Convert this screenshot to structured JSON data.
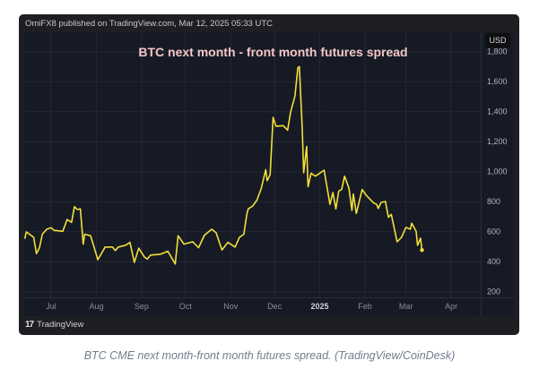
{
  "header": {
    "published": "OmiFX8 published on TradingView.com, Mar 12, 2025 05:33 UTC"
  },
  "currency_badge": "USD",
  "footer": {
    "logo_text": "TradingView",
    "logo_mark": "17"
  },
  "caption": "BTC CME next month-front month futures spread. (TradingView/CoinDesk)",
  "colors": {
    "line": "#f2df3a",
    "pane": "#161a25",
    "grid": "#232836",
    "axis_text": "#b2b5be"
  },
  "chart_data": {
    "type": "line",
    "title": "BTC next month - front month futures spread",
    "xlabel": "",
    "ylabel": "USD",
    "x_unit": "days since 2024-07-01",
    "xlim": [
      -18,
      290
    ],
    "ylim": [
      200,
      1800
    ],
    "grid": true,
    "y_ticks": [
      {
        "value": 200,
        "label": "200"
      },
      {
        "value": 400,
        "label": "400"
      },
      {
        "value": 600,
        "label": "600"
      },
      {
        "value": 800,
        "label": "800"
      },
      {
        "value": 1000,
        "label": "1,000"
      },
      {
        "value": 1200,
        "label": "1,200"
      },
      {
        "value": 1400,
        "label": "1,400"
      },
      {
        "value": 1600,
        "label": "1,600"
      },
      {
        "value": 1800,
        "label": "1,800"
      }
    ],
    "x_ticks": [
      {
        "value": 0,
        "label": "Jul",
        "bold": false
      },
      {
        "value": 31,
        "label": "Aug",
        "bold": false
      },
      {
        "value": 62,
        "label": "Sep",
        "bold": false
      },
      {
        "value": 92,
        "label": "Oct",
        "bold": false
      },
      {
        "value": 123,
        "label": "Nov",
        "bold": false
      },
      {
        "value": 153,
        "label": "Dec",
        "bold": false
      },
      {
        "value": 184,
        "label": "2025",
        "bold": true
      },
      {
        "value": 215,
        "label": "Feb",
        "bold": false
      },
      {
        "value": 243,
        "label": "Mar",
        "bold": false
      },
      {
        "value": 274,
        "label": "Apr",
        "bold": false
      }
    ],
    "series": [
      {
        "name": "spread",
        "x": [
          -18,
          -17,
          -12,
          -10,
          -8,
          -6,
          -3,
          0,
          2,
          8,
          11,
          14,
          16,
          18,
          20,
          22,
          23,
          27,
          32,
          35,
          37,
          42,
          44,
          46,
          51,
          54,
          57,
          60,
          64,
          66,
          68,
          75,
          80,
          85,
          87,
          91,
          97,
          101,
          105,
          110,
          113,
          117,
          121,
          126,
          129,
          132,
          134,
          135,
          138,
          141,
          144,
          147,
          148,
          150,
          152,
          154,
          159,
          162,
          164,
          167,
          169,
          170,
          172,
          173,
          175,
          176,
          178,
          181,
          187,
          191,
          193,
          195,
          197,
          199,
          201,
          204,
          206,
          207,
          209,
          213,
          216,
          221,
          223,
          224,
          226,
          229,
          231,
          233,
          237,
          240,
          243,
          246,
          247,
          250,
          251,
          253,
          254
        ],
        "values": [
          553,
          599,
          563,
          454,
          493,
          583,
          617,
          627,
          609,
          603,
          682,
          662,
          767,
          748,
          752,
          517,
          583,
          573,
          414,
          464,
          498,
          498,
          474,
          498,
          510,
          529,
          395,
          490,
          430,
          418,
          444,
          450,
          470,
          385,
          573,
          517,
          533,
          494,
          577,
          617,
          593,
          478,
          529,
          498,
          563,
          583,
          716,
          752,
          771,
          811,
          890,
          1014,
          940,
          980,
          1362,
          1303,
          1307,
          1277,
          1396,
          1505,
          1694,
          1700,
          1287,
          993,
          1168,
          901,
          990,
          970,
          1010,
          782,
          861,
          752,
          871,
          881,
          970,
          890,
          742,
          851,
          722,
          881,
          841,
          791,
          782,
          755,
          795,
          801,
          696,
          716,
          533,
          563,
          629,
          617,
          657,
          603,
          509,
          557,
          478
        ]
      }
    ]
  }
}
